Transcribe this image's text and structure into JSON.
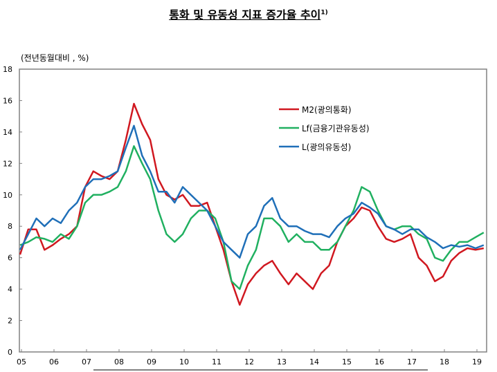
{
  "chart_data": {
    "type": "line",
    "title": "통화 및 유동성 지표 증가율 추이",
    "title_note": "1)",
    "ylabel": "(전년동월대비 , %)",
    "xlabel": "",
    "ylim": [
      0,
      18
    ],
    "yticks": [
      "0",
      "2",
      "4",
      "6",
      "8",
      "10",
      "12",
      "14",
      "16",
      "18"
    ],
    "xticks": [
      "05",
      "06",
      "07",
      "08",
      "09",
      "10",
      "11",
      "12",
      "13",
      "14",
      "15",
      "16",
      "17",
      "18",
      "19"
    ],
    "x_start_year": 2005,
    "x_step": "quarter",
    "legend_position": "top-right",
    "grid": false,
    "series": [
      {
        "name": "M2(광의통화)",
        "color": "#d01820",
        "values": [
          6.2,
          7.8,
          7.8,
          6.5,
          6.8,
          7.2,
          7.5,
          8.0,
          10.5,
          11.5,
          11.2,
          11.0,
          11.5,
          13.5,
          15.8,
          14.5,
          13.5,
          11.0,
          10.0,
          9.7,
          10.0,
          9.3,
          9.3,
          9.5,
          8.0,
          6.5,
          4.5,
          3.0,
          4.3,
          5.0,
          5.5,
          5.8,
          5.0,
          4.3,
          5.0,
          4.5,
          4.0,
          5.0,
          5.5,
          7.0,
          8.0,
          8.5,
          9.2,
          9.0,
          8.0,
          7.2,
          7.0,
          7.2,
          7.5,
          6.0,
          5.5,
          4.5,
          4.8,
          5.8,
          6.3,
          6.6,
          6.5,
          6.6
        ]
      },
      {
        "name": "Lf(금융기관유동성)",
        "color": "#20b060",
        "values": [
          6.8,
          7.0,
          7.3,
          7.2,
          7.0,
          7.5,
          7.2,
          8.0,
          9.5,
          10.0,
          10.0,
          10.2,
          10.5,
          11.5,
          13.1,
          12.0,
          11.0,
          9.0,
          7.5,
          7.0,
          7.5,
          8.5,
          9.0,
          9.0,
          8.5,
          7.0,
          4.5,
          4.0,
          5.5,
          6.5,
          8.5,
          8.5,
          8.0,
          7.0,
          7.5,
          7.0,
          7.0,
          6.5,
          6.5,
          7.0,
          8.0,
          9.0,
          10.5,
          10.2,
          9.0,
          8.0,
          7.8,
          8.0,
          8.0,
          7.5,
          7.2,
          6.0,
          5.8,
          6.5,
          7.0,
          7.0,
          7.3,
          7.6
        ]
      },
      {
        "name": "L(광의유동성)",
        "color": "#1f6fb8",
        "values": [
          6.5,
          7.5,
          8.5,
          8.0,
          8.5,
          8.2,
          9.0,
          9.5,
          10.5,
          11.0,
          11.0,
          11.2,
          11.5,
          13.0,
          14.4,
          12.5,
          11.5,
          10.2,
          10.2,
          9.5,
          10.5,
          10.0,
          9.5,
          9.0,
          8.0,
          7.0,
          6.5,
          6.0,
          7.5,
          8.0,
          9.3,
          9.8,
          8.5,
          8.0,
          8.0,
          7.7,
          7.5,
          7.5,
          7.3,
          8.0,
          8.5,
          8.8,
          9.5,
          9.2,
          8.8,
          8.0,
          7.8,
          7.5,
          7.8,
          7.8,
          7.3,
          7.0,
          6.6,
          6.8,
          6.7,
          6.8,
          6.6,
          6.8
        ]
      }
    ]
  }
}
